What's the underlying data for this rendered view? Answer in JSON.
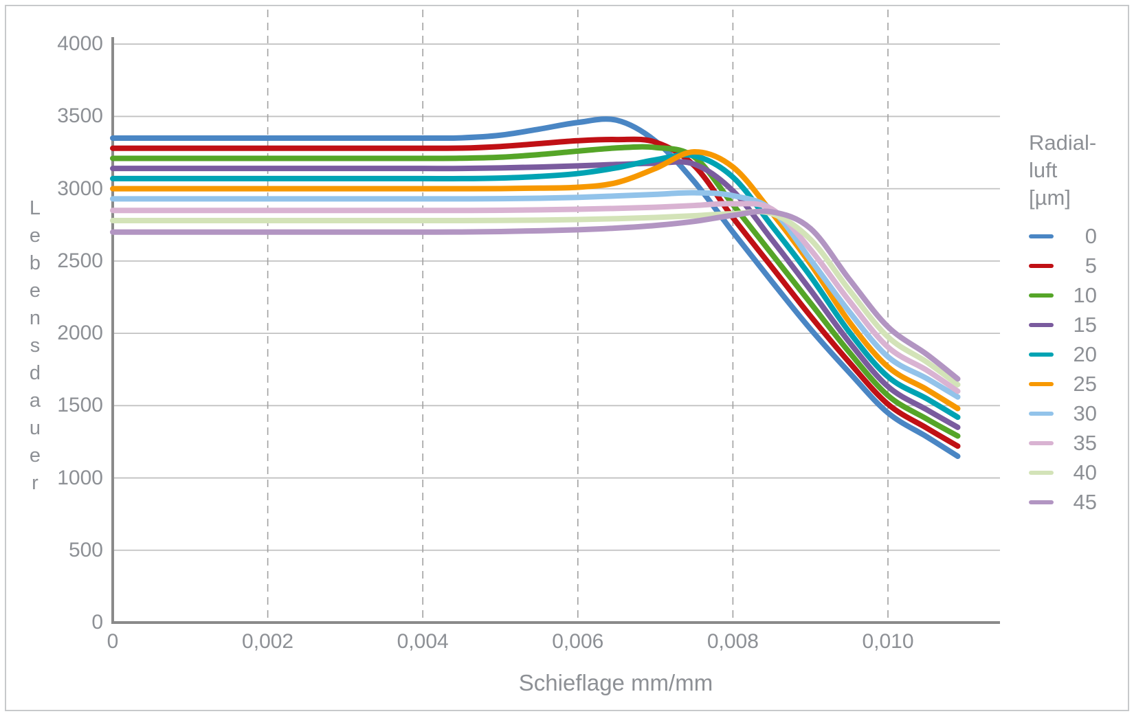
{
  "figure": {
    "background": "#ffffff",
    "border_color": "#c7c9cb",
    "text_color": "#8d9095",
    "axis_color": "#8a8a8a",
    "grid_color": "#c2c2c2",
    "dash_grid_color": "#a0a0a0"
  },
  "chart_data": {
    "type": "line",
    "title": "",
    "xlabel": "Schieflage mm/mm",
    "ylabel": "Lebensdauer",
    "ylabel_letters": [
      "L",
      "e",
      "b",
      "e",
      "n",
      "s",
      "d",
      "a",
      "u",
      "e",
      "r"
    ],
    "xlim": [
      0,
      0.01145
    ],
    "ylim": [
      0,
      4000
    ],
    "grid": {
      "horizontal": "solid",
      "vertical": "dashed"
    },
    "xticks": {
      "values": [
        0,
        0.002,
        0.004,
        0.006,
        0.008,
        0.01
      ],
      "labels": [
        "0",
        "0,002",
        "0,004",
        "0,006",
        "0,008",
        "0,010"
      ]
    },
    "yticks": {
      "values": [
        0,
        500,
        1000,
        1500,
        2000,
        2500,
        3000,
        3500,
        4000
      ],
      "labels": [
        "0",
        "500",
        "1000",
        "1500",
        "2000",
        "2500",
        "3000",
        "3500",
        "4000"
      ]
    },
    "legend": {
      "position": "right",
      "title_lines": [
        "Radial-",
        "luft",
        "[µm]"
      ]
    },
    "x_samples": [
      0,
      0.002,
      0.004,
      0.0045,
      0.005,
      0.0055,
      0.006,
      0.0065,
      0.007,
      0.0075,
      0.008,
      0.0085,
      0.009,
      0.0095,
      0.01,
      0.0105,
      0.0109
    ],
    "series": [
      {
        "name": "0",
        "color": "#4a86c4",
        "values": [
          3350,
          3350,
          3350,
          3352,
          3370,
          3412,
          3458,
          3474,
          3330,
          3050,
          2700,
          2360,
          2030,
          1730,
          1450,
          1285,
          1150
        ]
      },
      {
        "name": "5",
        "color": "#c01015",
        "values": [
          3280,
          3280,
          3280,
          3281,
          3292,
          3312,
          3332,
          3340,
          3322,
          3160,
          2800,
          2460,
          2120,
          1800,
          1510,
          1345,
          1220
        ]
      },
      {
        "name": "10",
        "color": "#55a528",
        "values": [
          3210,
          3210,
          3210,
          3211,
          3218,
          3236,
          3260,
          3282,
          3285,
          3220,
          2890,
          2550,
          2210,
          1870,
          1570,
          1408,
          1290
        ]
      },
      {
        "name": "15",
        "color": "#7a5b9e",
        "values": [
          3140,
          3140,
          3140,
          3140,
          3144,
          3150,
          3158,
          3168,
          3176,
          3170,
          2985,
          2650,
          2300,
          1940,
          1632,
          1472,
          1350
        ]
      },
      {
        "name": "20",
        "color": "#00a3b3",
        "values": [
          3070,
          3070,
          3070,
          3070,
          3074,
          3085,
          3105,
          3145,
          3200,
          3228,
          3080,
          2745,
          2395,
          2010,
          1700,
          1548,
          1420
        ]
      },
      {
        "name": "25",
        "color": "#f79800",
        "values": [
          3000,
          3000,
          3000,
          3000,
          3001,
          3004,
          3010,
          3042,
          3140,
          3255,
          3150,
          2835,
          2480,
          2080,
          1768,
          1612,
          1480
        ]
      },
      {
        "name": "30",
        "color": "#92c3ea",
        "values": [
          2930,
          2930,
          2930,
          2930,
          2931,
          2934,
          2940,
          2950,
          2961,
          2972,
          2952,
          2855,
          2510,
          2150,
          1838,
          1688,
          1560
        ]
      },
      {
        "name": "35",
        "color": "#d9b3d2",
        "values": [
          2850,
          2850,
          2850,
          2850,
          2851,
          2854,
          2858,
          2864,
          2872,
          2884,
          2896,
          2860,
          2580,
          2225,
          1905,
          1745,
          1600
        ]
      },
      {
        "name": "40",
        "color": "#d3e3b8",
        "values": [
          2780,
          2780,
          2780,
          2780,
          2781,
          2783,
          2787,
          2793,
          2801,
          2813,
          2827,
          2828,
          2650,
          2300,
          1975,
          1802,
          1645
        ]
      },
      {
        "name": "45",
        "color": "#b295c2",
        "values": [
          2700,
          2700,
          2700,
          2701,
          2704,
          2709,
          2716,
          2728,
          2746,
          2774,
          2816,
          2840,
          2725,
          2375,
          2045,
          1855,
          1685
        ]
      }
    ]
  }
}
